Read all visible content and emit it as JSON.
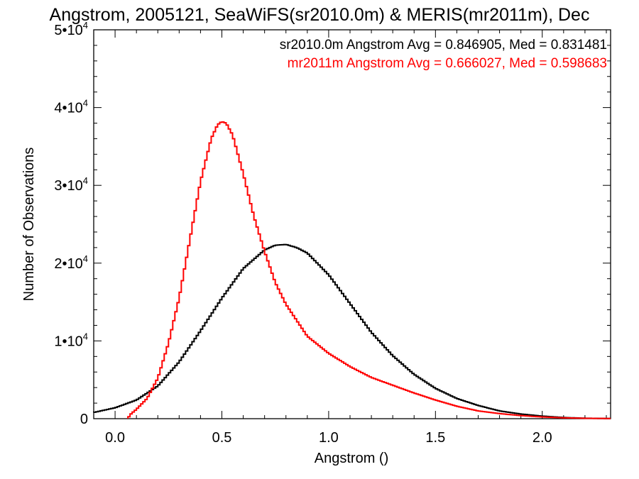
{
  "chart_data": {
    "type": "line",
    "title": "Angstrom, 2005121, SeaWiFS(sr2010.0m) & MERIS(mr2011m), Dec",
    "xlabel": "Angstrom ()",
    "ylabel": "Number of Observations",
    "xlim": [
      -0.1,
      2.32
    ],
    "ylim": [
      0,
      50000
    ],
    "x_ticks": [
      "0.0",
      "0.5",
      "1.0",
      "1.5",
      "2.0"
    ],
    "y_ticks": [
      {
        "value": 0,
        "mantissa": "0",
        "exp": ""
      },
      {
        "value": 10000,
        "mantissa": "1•10",
        "exp": "4"
      },
      {
        "value": 20000,
        "mantissa": "2•10",
        "exp": "4"
      },
      {
        "value": 30000,
        "mantissa": "3•10",
        "exp": "4"
      },
      {
        "value": 40000,
        "mantissa": "4•10",
        "exp": "4"
      },
      {
        "value": 50000,
        "mantissa": "5•10",
        "exp": "4"
      }
    ],
    "grid": false,
    "legend_position": "top-right",
    "series": [
      {
        "name": "sr2010.0m",
        "legend_text": "sr2010.0m Angstrom Avg = 0.846905, Med = 0.831481",
        "color": "#000000",
        "x": [
          -0.1,
          0.0,
          0.1,
          0.2,
          0.3,
          0.4,
          0.5,
          0.6,
          0.7,
          0.75,
          0.8,
          0.85,
          0.9,
          1.0,
          1.1,
          1.2,
          1.3,
          1.4,
          1.5,
          1.6,
          1.7,
          1.8,
          1.9,
          2.0,
          2.1,
          2.2,
          2.32
        ],
        "y": [
          800,
          1400,
          2400,
          4200,
          7300,
          11300,
          15500,
          19300,
          21700,
          22300,
          22400,
          22000,
          21300,
          18500,
          14800,
          11100,
          8100,
          5700,
          3900,
          2600,
          1700,
          1000,
          600,
          330,
          150,
          60,
          20
        ]
      },
      {
        "name": "mr2011m",
        "legend_text": "mr2011m Angstrom Avg = 0.666027, Med = 0.598683",
        "color": "#ff0000",
        "x": [
          0.06,
          0.07,
          0.1,
          0.15,
          0.2,
          0.25,
          0.3,
          0.35,
          0.4,
          0.45,
          0.48,
          0.5,
          0.52,
          0.55,
          0.6,
          0.65,
          0.7,
          0.75,
          0.8,
          0.9,
          1.0,
          1.1,
          1.2,
          1.3,
          1.4,
          1.5,
          1.6,
          1.7,
          1.8,
          1.9,
          2.0,
          2.1,
          2.2,
          2.32
        ],
        "y": [
          0,
          500,
          1200,
          2600,
          5200,
          9700,
          15500,
          23000,
          30500,
          36000,
          37800,
          38200,
          38000,
          36500,
          31500,
          26000,
          21500,
          17500,
          14700,
          10600,
          8400,
          6700,
          5300,
          4300,
          3300,
          2400,
          1600,
          1000,
          650,
          400,
          220,
          110,
          50,
          20
        ]
      }
    ]
  }
}
